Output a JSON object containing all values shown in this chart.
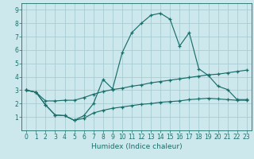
{
  "xlabel": "Humidex (Indice chaleur)",
  "bg_color": "#cde8ec",
  "grid_color": "#a8cdd4",
  "line_color": "#1a6e6a",
  "xlim": [
    -0.5,
    23.5
  ],
  "ylim": [
    0,
    9.5
  ],
  "xticks": [
    0,
    1,
    2,
    3,
    4,
    5,
    6,
    7,
    8,
    9,
    10,
    11,
    12,
    13,
    14,
    15,
    16,
    17,
    18,
    19,
    20,
    21,
    22,
    23
  ],
  "yticks": [
    1,
    2,
    3,
    4,
    5,
    6,
    7,
    8,
    9
  ],
  "line1_x": [
    0,
    1,
    2,
    3,
    4,
    5,
    6,
    7,
    8,
    9,
    10,
    11,
    12,
    13,
    14,
    15,
    16,
    17,
    18,
    19,
    20,
    21,
    22,
    23
  ],
  "line1_y": [
    3.0,
    2.85,
    1.9,
    1.15,
    1.1,
    0.75,
    1.1,
    2.0,
    3.8,
    3.1,
    5.8,
    7.3,
    8.0,
    8.6,
    8.75,
    8.3,
    6.3,
    7.3,
    4.6,
    4.1,
    3.3,
    3.05,
    2.3,
    2.3
  ],
  "line2_x": [
    0,
    1,
    2,
    3,
    4,
    5,
    6,
    7,
    8,
    9,
    10,
    11,
    12,
    13,
    14,
    15,
    16,
    17,
    18,
    19,
    20,
    21,
    22,
    23
  ],
  "line2_y": [
    3.0,
    2.85,
    2.2,
    2.2,
    2.25,
    2.25,
    2.45,
    2.7,
    2.9,
    3.05,
    3.15,
    3.3,
    3.4,
    3.55,
    3.65,
    3.75,
    3.85,
    3.95,
    4.05,
    4.15,
    4.2,
    4.3,
    4.4,
    4.5
  ],
  "line3_x": [
    0,
    1,
    2,
    3,
    4,
    5,
    6,
    7,
    8,
    9,
    10,
    11,
    12,
    13,
    14,
    15,
    16,
    17,
    18,
    19,
    20,
    21,
    22,
    23
  ],
  "line3_y": [
    3.0,
    2.85,
    1.9,
    1.15,
    1.1,
    0.75,
    0.9,
    1.3,
    1.5,
    1.65,
    1.75,
    1.85,
    1.95,
    2.0,
    2.1,
    2.15,
    2.2,
    2.3,
    2.35,
    2.4,
    2.35,
    2.3,
    2.25,
    2.25
  ],
  "tick_fontsize": 5.5,
  "xlabel_fontsize": 6.5
}
